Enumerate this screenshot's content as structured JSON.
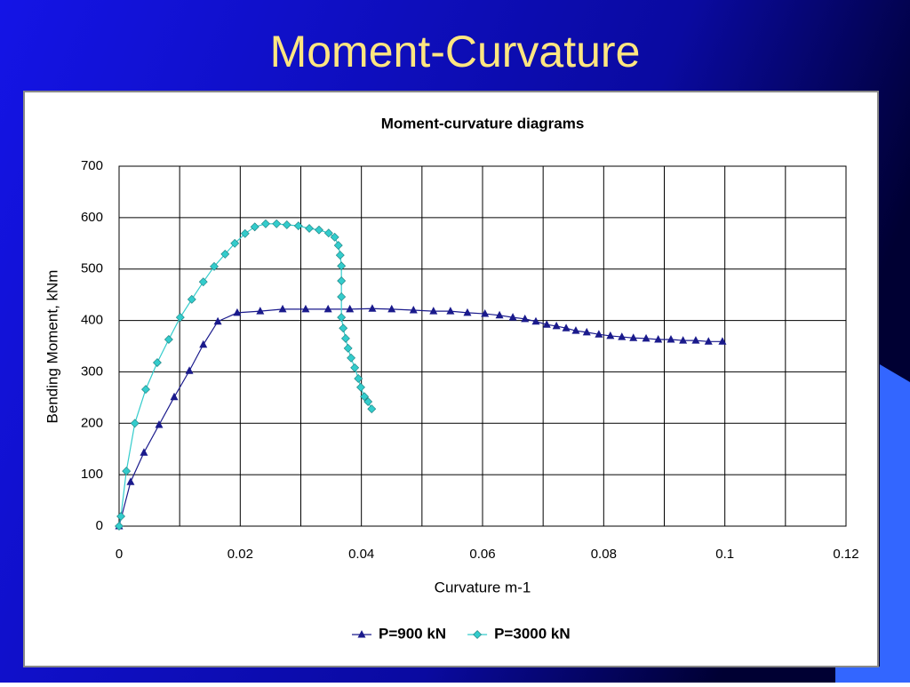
{
  "slide_title": "Moment-Curvature",
  "chart_data": {
    "type": "line",
    "title": "Moment-curvature diagrams",
    "x_label": "Curvature m-1",
    "y_label": "Bending Moment, kNm",
    "xlim": [
      0,
      0.12
    ],
    "xticks": [
      0,
      0.02,
      0.04,
      0.06,
      0.08,
      0.1,
      0.12
    ],
    "xminor_grid": [
      0.01,
      0.03,
      0.05,
      0.07,
      0.09,
      0.11
    ],
    "ylim": [
      0,
      700
    ],
    "yticks": [
      0,
      100,
      200,
      300,
      400,
      500,
      600,
      700
    ],
    "grid": true,
    "legend": "bottom",
    "series": [
      {
        "name": "P=900 kN",
        "color": "#1a1a8c",
        "marker": "triangle",
        "x": [
          0,
          0.0019,
          0.0041,
          0.0066,
          0.0091,
          0.0116,
          0.0139,
          0.0163,
          0.0195,
          0.0233,
          0.027,
          0.0308,
          0.0345,
          0.0381,
          0.0418,
          0.045,
          0.0486,
          0.0519,
          0.0547,
          0.0575,
          0.0604,
          0.0628,
          0.065,
          0.067,
          0.0688,
          0.0706,
          0.0722,
          0.0738,
          0.0754,
          0.0772,
          0.0792,
          0.0811,
          0.083,
          0.0849,
          0.087,
          0.089,
          0.0911,
          0.0931,
          0.0952,
          0.0973,
          0.0996
        ],
        "values": [
          0,
          86,
          143,
          197,
          251,
          302,
          353,
          398,
          415,
          418,
          422,
          422,
          422,
          422,
          423,
          422,
          420,
          418,
          418,
          415,
          413,
          410,
          406,
          403,
          398,
          392,
          389,
          385,
          380,
          377,
          373,
          370,
          368,
          366,
          365,
          363,
          363,
          361,
          361,
          359,
          359
        ]
      },
      {
        "name": "P=3000 kN",
        "color": "#33cccc",
        "marker": "diamond",
        "x": [
          0,
          0.0003,
          0.0012,
          0.0026,
          0.0044,
          0.0063,
          0.0082,
          0.0101,
          0.012,
          0.0139,
          0.0157,
          0.0175,
          0.0191,
          0.0208,
          0.0224,
          0.0242,
          0.026,
          0.0277,
          0.0296,
          0.0314,
          0.033,
          0.0346,
          0.0356,
          0.0362,
          0.0365,
          0.0367,
          0.0367,
          0.0367,
          0.0367,
          0.037,
          0.0374,
          0.0378,
          0.0383,
          0.0389,
          0.0395,
          0.0399,
          0.0405,
          0.0411,
          0.0417
        ],
        "values": [
          0,
          19,
          107,
          200,
          266,
          318,
          363,
          406,
          441,
          475,
          505,
          529,
          550,
          569,
          582,
          588,
          588,
          586,
          584,
          579,
          576,
          570,
          562,
          546,
          527,
          506,
          477,
          446,
          406,
          385,
          365,
          346,
          327,
          308,
          287,
          270,
          252,
          242,
          228
        ]
      }
    ]
  }
}
